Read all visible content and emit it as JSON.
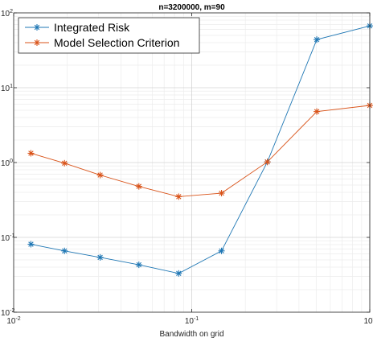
{
  "chart_data": {
    "type": "line",
    "title": "n=3200000, m=90",
    "xlabel": "Bandwidth on grid",
    "ylabel": "",
    "xscale": "log",
    "yscale": "log",
    "xlim": [
      0.01,
      1
    ],
    "ylim": [
      0.01,
      100
    ],
    "grid": "on",
    "minor_grid": "on",
    "legend_position": "top-left",
    "x_ticks": [
      {
        "base": "10",
        "exp": "-2",
        "value": 0.01
      },
      {
        "base": "10",
        "exp": "-1",
        "value": 0.1
      },
      {
        "base": "10",
        "exp": "0",
        "value": 1
      }
    ],
    "y_ticks": [
      {
        "base": "10",
        "exp": "-2",
        "value": 0.01
      },
      {
        "base": "10",
        "exp": "-1",
        "value": 0.1
      },
      {
        "base": "10",
        "exp": "0",
        "value": 1
      },
      {
        "base": "10",
        "exp": "1",
        "value": 10
      },
      {
        "base": "10",
        "exp": "2",
        "value": 100
      }
    ],
    "x": [
      0.0125,
      0.0193,
      0.0306,
      0.0505,
      0.0845,
      0.147,
      0.266,
      0.504,
      1.0
    ],
    "series": [
      {
        "name": "Integrated Risk",
        "color": "#1f77b4",
        "marker": "asterisk",
        "values": [
          0.081,
          0.066,
          0.054,
          0.043,
          0.033,
          0.066,
          1.02,
          44.0,
          67.0
        ]
      },
      {
        "name": "Model Selection Criterion",
        "color": "#d95319",
        "marker": "asterisk",
        "values": [
          1.33,
          0.98,
          0.68,
          0.48,
          0.35,
          0.39,
          1.02,
          4.8,
          5.8
        ]
      }
    ]
  }
}
